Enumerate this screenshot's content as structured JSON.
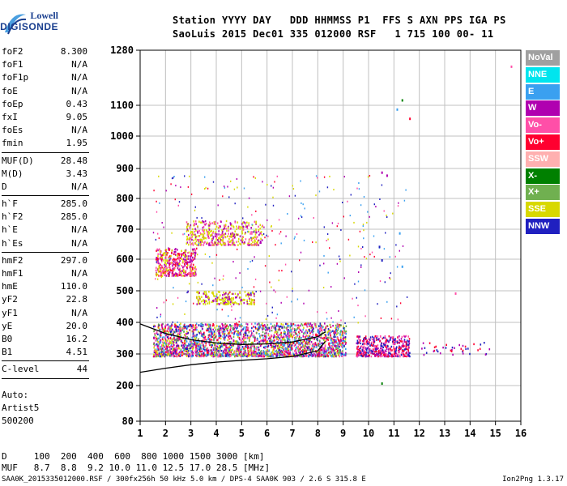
{
  "logo": {
    "line1": "Lowell",
    "line2": "DIGISONDE"
  },
  "header": {
    "row1": "Station YYYY DAY   DDD HHMMSS P1  FFS S AXN PPS IGA PS",
    "row2": "SaoLuis 2015 Dec01 335 012000 RSF   1 715 100 00- 11"
  },
  "params": {
    "group1": [
      {
        "k": "foF2",
        "v": "8.300"
      },
      {
        "k": "foF1",
        "v": "N/A"
      },
      {
        "k": "foF1p",
        "v": "N/A"
      },
      {
        "k": "foE",
        "v": "N/A"
      },
      {
        "k": "foEp",
        "v": "0.43"
      },
      {
        "k": "fxI",
        "v": "9.05"
      },
      {
        "k": "foEs",
        "v": "N/A"
      },
      {
        "k": "fmin",
        "v": "1.95"
      }
    ],
    "group2": [
      {
        "k": "MUF(D)",
        "v": "28.48"
      },
      {
        "k": "M(D)",
        "v": "3.43"
      },
      {
        "k": "D",
        "v": "N/A"
      }
    ],
    "group3": [
      {
        "k": "h`F",
        "v": "285.0"
      },
      {
        "k": "h`F2",
        "v": "285.0"
      },
      {
        "k": "h`E",
        "v": "N/A"
      },
      {
        "k": "h`Es",
        "v": "N/A"
      }
    ],
    "group4": [
      {
        "k": "hmF2",
        "v": "297.0"
      },
      {
        "k": "hmF1",
        "v": "N/A"
      },
      {
        "k": "hmE",
        "v": "110.0"
      },
      {
        "k": "yF2",
        "v": "22.8"
      },
      {
        "k": "yF1",
        "v": "N/A"
      },
      {
        "k": "yE",
        "v": "20.0"
      },
      {
        "k": "B0",
        "v": "16.2"
      },
      {
        "k": "B1",
        "v": "4.51"
      }
    ],
    "group5": [
      {
        "k": "C-level",
        "v": "44"
      }
    ]
  },
  "auto": {
    "line1": "Auto:",
    "line2": "Artist5",
    "line3": "500200"
  },
  "dmuf": {
    "drow": "D     100  200  400  600  800 1000 1500 3000 [km]",
    "mufrow": "MUF   8.7  8.8  9.2 10.0 11.0 12.5 17.0 28.5 [MHz]"
  },
  "footer": {
    "left": "SAA0K_2015335012000.RSF / 300fx256h 50 kHz 5.0 km / DPS-4 SAA0K 903 / 2.6 S 315.8 E",
    "right": "Ion2Png 1.3.17"
  },
  "legend": [
    {
      "label": "NoVal",
      "color": "#a0a0a0"
    },
    {
      "label": "NNE",
      "color": "#00e5ee"
    },
    {
      "label": "E",
      "color": "#3aa0f0"
    },
    {
      "label": "W",
      "color": "#b000b0"
    },
    {
      "label": "Vo-",
      "color": "#ff4fa8"
    },
    {
      "label": "Vo+",
      "color": "#ff0030"
    },
    {
      "label": "SSW",
      "color": "#ffb0b0"
    },
    {
      "label": "X-",
      "color": "#008000"
    },
    {
      "label": "X+",
      "color": "#70b050"
    },
    {
      "label": "SSE",
      "color": "#d8d800"
    },
    {
      "label": "NNW",
      "color": "#2020c0"
    }
  ],
  "chart_data": {
    "type": "scatter",
    "xlim": [
      1,
      16
    ],
    "x_ticks": [
      1,
      2,
      3,
      4,
      5,
      6,
      7,
      8,
      9,
      10,
      11,
      12,
      13,
      14,
      15,
      16
    ],
    "y_ticks": [
      80,
      200,
      300,
      400,
      500,
      600,
      700,
      800,
      900,
      1000,
      1100,
      1280
    ],
    "y_scale": "nonlinear",
    "grid": true,
    "traces": [
      {
        "name": "O-trace",
        "freq_MHz": [
          1.0,
          2.0,
          3.0,
          4.0,
          5.0,
          6.0,
          7.0,
          8.0,
          8.3
        ],
        "height_km": [
          242,
          255,
          266,
          274,
          280,
          285,
          292,
          310,
          340
        ]
      },
      {
        "name": "X-trace",
        "freq_MHz": [
          1.0,
          2.0,
          3.0,
          4.0,
          5.0,
          6.0,
          7.0,
          8.0,
          8.3
        ],
        "height_km": [
          395,
          365,
          345,
          335,
          330,
          332,
          338,
          355,
          370
        ]
      }
    ],
    "echo_regions": [
      {
        "freq_MHz": [
          1.5,
          9.1
        ],
        "height_km": [
          295,
          400
        ],
        "dominant": "Vo+/W"
      },
      {
        "freq_MHz": [
          9.5,
          11.6
        ],
        "height_km": [
          295,
          360
        ],
        "dominant": "Vo+"
      },
      {
        "freq_MHz": [
          2.8,
          5.8
        ],
        "height_km": [
          650,
          730
        ],
        "dominant": "SSE"
      },
      {
        "freq_MHz": [
          1.6,
          3.2
        ],
        "height_km": [
          550,
          640
        ],
        "dominant": "W"
      },
      {
        "freq_MHz": [
          3.2,
          5.5
        ],
        "height_km": [
          460,
          500
        ],
        "dominant": "SSE"
      }
    ]
  }
}
